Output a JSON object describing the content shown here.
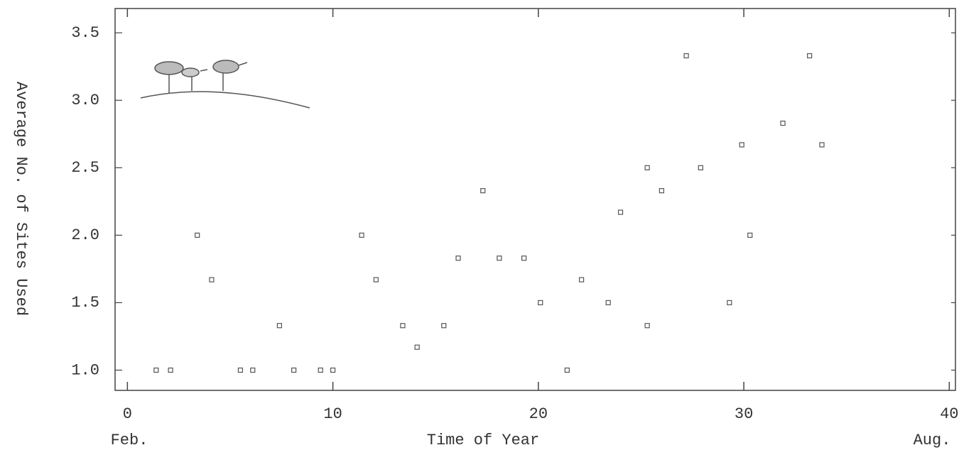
{
  "chart_data": {
    "type": "scatter",
    "x_label": "Time of Year",
    "y_label": "Average No. of Sites Used",
    "x_start_label": "Feb.",
    "x_end_label": "Aug.",
    "color": "#555555",
    "x": [
      1.4,
      2.1,
      3.4,
      4.1,
      5.5,
      6.1,
      7.4,
      8.1,
      9.4,
      10.0,
      11.4,
      12.1,
      13.4,
      14.1,
      15.4,
      16.1,
      17.3,
      18.1,
      19.3,
      20.1,
      21.4,
      22.1,
      23.4,
      24.0,
      25.3,
      25.3,
      26.0,
      27.2,
      27.9,
      29.3,
      29.9,
      30.3,
      31.9,
      33.2,
      33.8
    ],
    "values": [
      1.0,
      1.0,
      2.0,
      1.67,
      1.0,
      1.0,
      1.33,
      1.0,
      1.0,
      1.0,
      2.0,
      1.67,
      1.33,
      1.17,
      1.33,
      1.83,
      2.33,
      1.83,
      1.83,
      1.5,
      1.0,
      1.67,
      1.5,
      2.17,
      2.5,
      1.33,
      2.33,
      3.33,
      2.5,
      1.5,
      2.67,
      2.0,
      2.83,
      3.33,
      2.67
    ],
    "xlim": [
      -0.6,
      40.3
    ],
    "ylim": [
      0.85,
      3.68
    ],
    "xticks": [
      0,
      10,
      20,
      30,
      40
    ],
    "yticks": [
      {
        "value": 1.0,
        "label": "1.0"
      },
      {
        "value": 1.5,
        "label": "1.5"
      },
      {
        "value": 2.0,
        "label": "2.0"
      },
      {
        "value": 2.5,
        "label": "2.5"
      },
      {
        "value": 3.0,
        "label": "3.0"
      },
      {
        "value": 3.5,
        "label": "3.5"
      }
    ]
  }
}
